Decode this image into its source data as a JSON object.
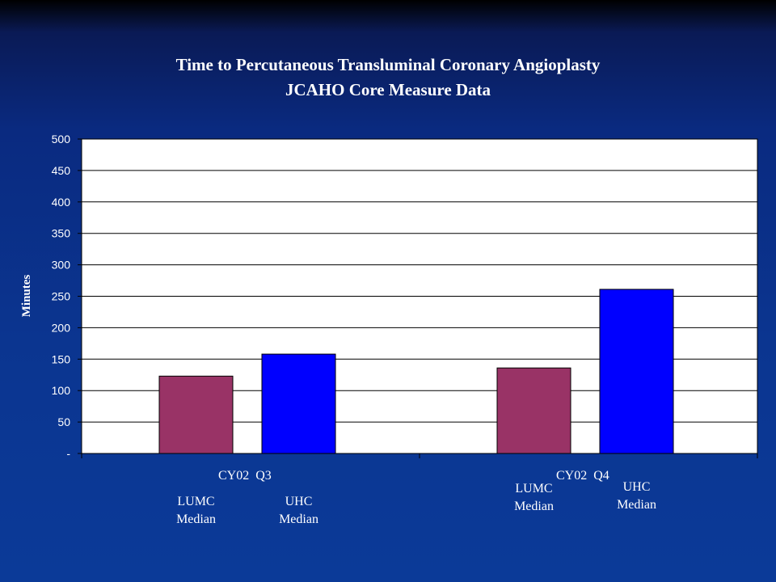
{
  "chart_data": {
    "type": "bar",
    "title": "Time to Percutaneous Transluminal Coronary Angioplasty",
    "subtitle": "JCAHO Core Measure Data",
    "ylabel": "Minutes",
    "xlabel": "",
    "ylim": [
      0,
      500
    ],
    "yticks": [
      "-",
      "50",
      "100",
      "150",
      "200",
      "250",
      "300",
      "350",
      "400",
      "450",
      "500"
    ],
    "grid": true,
    "categories": [
      "CY02  Q3",
      "CY02  Q4"
    ],
    "series": [
      {
        "name": "LUMC Median",
        "color": "#993366",
        "values": [
          123,
          136
        ]
      },
      {
        "name": "UHC Median",
        "color": "#0000ff",
        "values": [
          158,
          261
        ]
      }
    ],
    "bar_labels": [
      [
        {
          "line1": "LUMC",
          "line2": "Median"
        },
        {
          "line1": "UHC",
          "line2": "Median"
        }
      ],
      [
        {
          "line1": "LUMC",
          "line2": "Median"
        },
        {
          "line1": "UHC",
          "line2": "Median"
        }
      ]
    ],
    "plot_background": "#ffffff",
    "slide_background": "#0b3590"
  }
}
